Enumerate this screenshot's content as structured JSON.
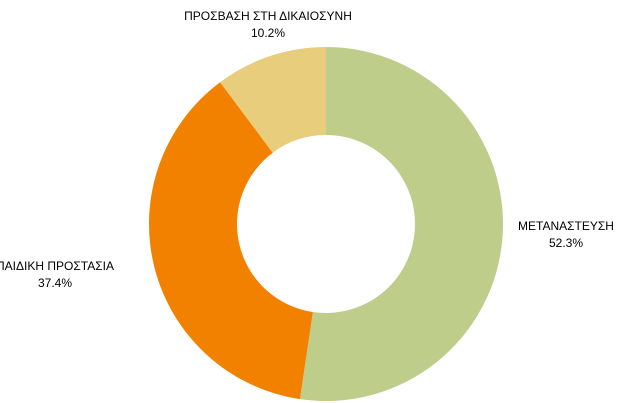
{
  "chart_data": {
    "type": "pie",
    "variant": "donut",
    "title": "",
    "legend": "none",
    "slices": [
      {
        "label": "ΜΕΤΑΝΑΣΤΕΥΣΗ",
        "value": 52.3,
        "value_text": "52.3%",
        "color": "#bfcd8b"
      },
      {
        "label": "ΠΑΙΔΙΚΗ ΠΡΟΣΤΑΣΙΑ",
        "value": 37.4,
        "value_text": "37.4%",
        "color": "#f28100"
      },
      {
        "label": "ΠΡΟΣΒΑΣΗ ΣΤΗ ΔΙΚΑΙΟΣΥΝΗ",
        "value": 10.2,
        "value_text": "10.2%",
        "color": "#e8cd7c"
      }
    ]
  }
}
